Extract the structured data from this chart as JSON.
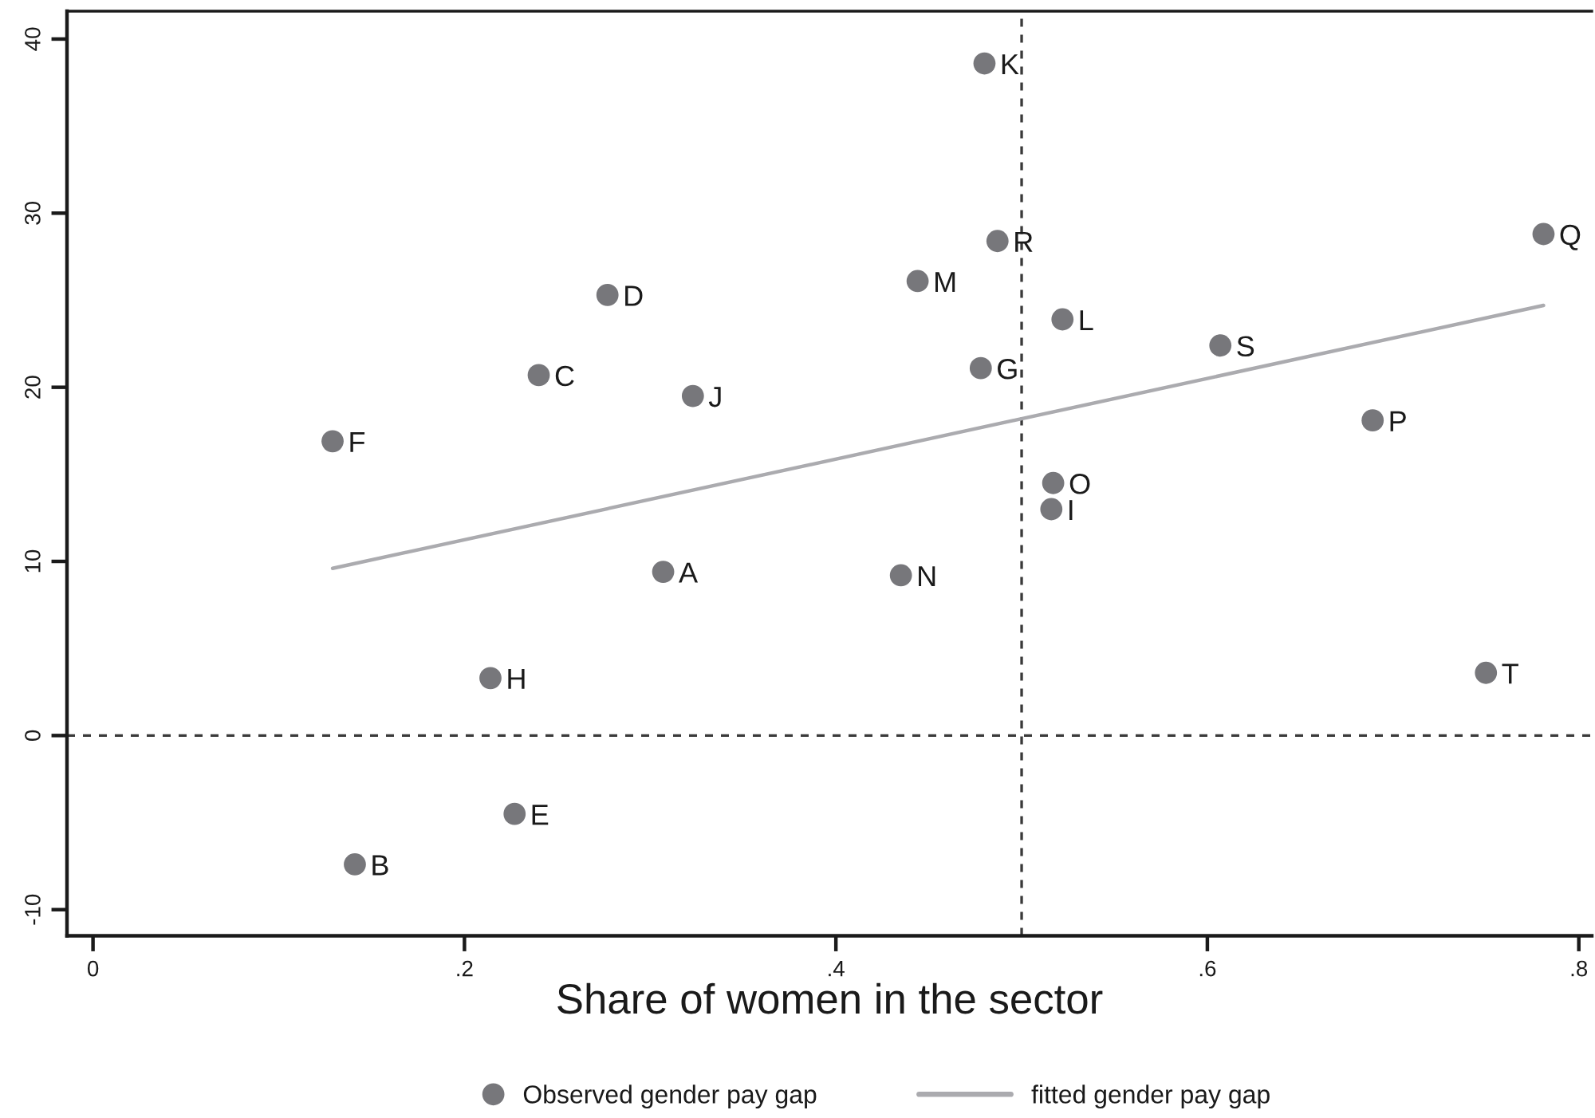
{
  "chart_data": {
    "type": "scatter",
    "xlabel": "Share of women in the sector",
    "xlim": [
      -0.014,
      0.807
    ],
    "xticks": [
      0,
      {
        "value": 0.2,
        "label": ".2"
      },
      {
        "value": 0.4,
        "label": ".4"
      },
      {
        "value": 0.6,
        "label": ".6"
      },
      {
        "value": 0.8,
        "label": ".8"
      }
    ],
    "ylim": [
      -11.5,
      41.6
    ],
    "yticks": [
      -10,
      0,
      10,
      20,
      30,
      40
    ],
    "series": [
      {
        "name": "Observed gender pay gap",
        "color": "#77777b",
        "marker": "circle",
        "x": [
          0.307,
          0.141,
          0.24,
          0.277,
          0.227,
          0.129,
          0.478,
          0.214,
          0.516,
          0.323,
          0.48,
          0.522,
          0.444,
          0.435,
          0.517,
          0.689,
          0.781,
          0.487,
          0.607,
          0.75
        ],
        "values": [
          9.4,
          -7.4,
          20.7,
          25.3,
          -4.5,
          16.9,
          21.1,
          3.3,
          13.0,
          19.5,
          38.6,
          23.9,
          26.1,
          9.2,
          14.5,
          18.1,
          28.8,
          28.4,
          22.4,
          3.6
        ]
      },
      {
        "name": "fitted gender pay gap",
        "type": "line",
        "color": "#ababaf",
        "x": [
          0.129,
          0.781
        ],
        "values": [
          9.6,
          24.7
        ]
      }
    ],
    "ref_lines": [
      {
        "axis": "x",
        "value": 0.5,
        "color": "#3a3a3a",
        "line_style": "dashed"
      },
      {
        "axis": "y",
        "value": 0,
        "color": "#3a3a3a",
        "line_style": "dashed"
      }
    ],
    "annotations": [
      {
        "text": "A",
        "x": 0.307,
        "y": 9.4
      },
      {
        "text": "B",
        "x": 0.141,
        "y": -7.4
      },
      {
        "text": "C",
        "x": 0.24,
        "y": 20.7
      },
      {
        "text": "D",
        "x": 0.277,
        "y": 25.3
      },
      {
        "text": "E",
        "x": 0.227,
        "y": -4.5
      },
      {
        "text": "F",
        "x": 0.129,
        "y": 16.9
      },
      {
        "text": "G",
        "x": 0.478,
        "y": 21.1
      },
      {
        "text": "H",
        "x": 0.214,
        "y": 3.3
      },
      {
        "text": "I",
        "x": 0.516,
        "y": 13.0
      },
      {
        "text": "J",
        "x": 0.323,
        "y": 19.5
      },
      {
        "text": "K",
        "x": 0.48,
        "y": 38.6
      },
      {
        "text": "L",
        "x": 0.522,
        "y": 23.9
      },
      {
        "text": "M",
        "x": 0.444,
        "y": 26.1
      },
      {
        "text": "N",
        "x": 0.435,
        "y": 9.2
      },
      {
        "text": "O",
        "x": 0.517,
        "y": 14.5
      },
      {
        "text": "P",
        "x": 0.689,
        "y": 18.1
      },
      {
        "text": "Q",
        "x": 0.781,
        "y": 28.8
      },
      {
        "text": "R",
        "x": 0.487,
        "y": 28.4
      },
      {
        "text": "S",
        "x": 0.607,
        "y": 22.4
      },
      {
        "text": "T",
        "x": 0.75,
        "y": 3.6
      }
    ],
    "legend": "bottom",
    "grid": false
  }
}
